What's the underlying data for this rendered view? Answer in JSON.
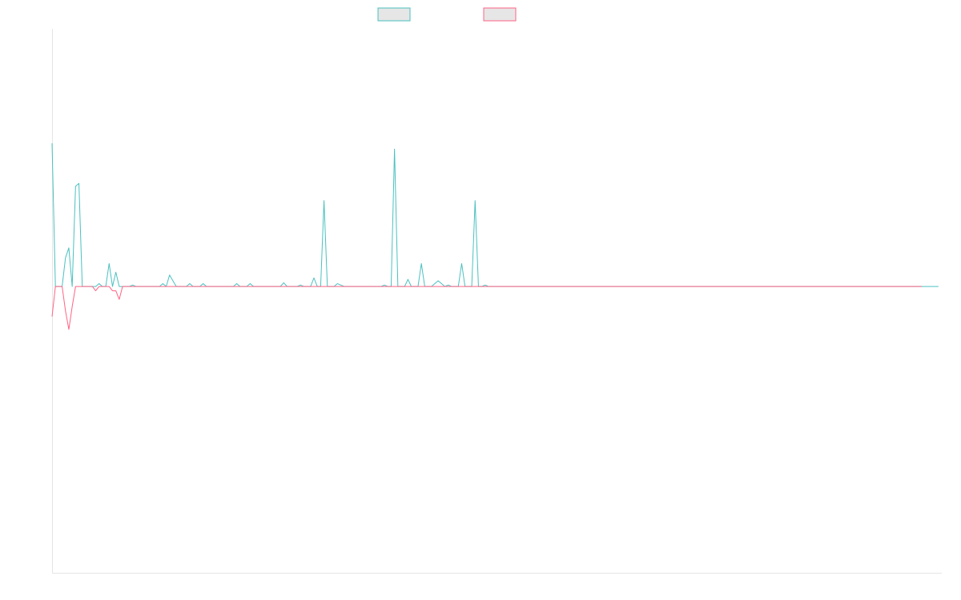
{
  "chart_data": {
    "type": "line",
    "title": "",
    "xlabel": "",
    "ylabel": "",
    "legend": {
      "placement": "top-center"
    },
    "grid": false,
    "x_count": 266,
    "ylim": [
      -1.0,
      0.9
    ],
    "series": [
      {
        "name": "",
        "color": "#4bc0c0",
        "fill": "#e6e6e6",
        "values": [
          0.5,
          0,
          0,
          0,
          0.1,
          0.135,
          0,
          0.35,
          0.36,
          0,
          0,
          0,
          0,
          0,
          0.01,
          0,
          0,
          0.08,
          0,
          0.05,
          0,
          0,
          0,
          0,
          0.005,
          0,
          0,
          0,
          0,
          0,
          0,
          0,
          0,
          0.01,
          0,
          0.04,
          0.02,
          0,
          0,
          0,
          0,
          0.01,
          0,
          0,
          0,
          0.01,
          0,
          0,
          0,
          0,
          0,
          0,
          0,
          0,
          0,
          0.01,
          0,
          0,
          0,
          0.01,
          0,
          0,
          0,
          0,
          0,
          0,
          0,
          0,
          0,
          0.013,
          0,
          0,
          0,
          0,
          0.005,
          0,
          0,
          0,
          0.03,
          0,
          0,
          0.3,
          0,
          0,
          0,
          0.01,
          0.005,
          0,
          0,
          0,
          0,
          0,
          0,
          0,
          0,
          0,
          0,
          0,
          0,
          0.005,
          0,
          0,
          0.48,
          0,
          0,
          0,
          0.025,
          0,
          0,
          0,
          0.08,
          0,
          0,
          0,
          0.01,
          0.02,
          0.01,
          0,
          0.005,
          0,
          0,
          0,
          0.08,
          0,
          0,
          0,
          0.3,
          0,
          0,
          0.005,
          0,
          0,
          0,
          0,
          0,
          0,
          0,
          0,
          0,
          0,
          0,
          0,
          0,
          0,
          0,
          0,
          0,
          0,
          0,
          0,
          0,
          0,
          0,
          0,
          0,
          0,
          0,
          0,
          0,
          0,
          0,
          0,
          0,
          0,
          0,
          0,
          0,
          0,
          0,
          0,
          0,
          0,
          0,
          0,
          0,
          0,
          0,
          0,
          0,
          0,
          0,
          0,
          0,
          0,
          0,
          0,
          0,
          0,
          0,
          0,
          0,
          0,
          0,
          0,
          0,
          0,
          0,
          0,
          0,
          0,
          0,
          0,
          0,
          0,
          0,
          0,
          0,
          0,
          0,
          0,
          0,
          0,
          0,
          0,
          0,
          0,
          0,
          0,
          0,
          0,
          0,
          0,
          0,
          0,
          0,
          0,
          0,
          0,
          0,
          0,
          0,
          0,
          0,
          0,
          0,
          0,
          0,
          0,
          0,
          0,
          0,
          0,
          0,
          0,
          0,
          0,
          0,
          0,
          0,
          0,
          0,
          0,
          0,
          0,
          0,
          0,
          0,
          0,
          0,
          0,
          0,
          0,
          0,
          0,
          0
        ]
      },
      {
        "name": "",
        "color": "#ff6384",
        "fill": "#e6e6e6",
        "values": [
          -0.105,
          0,
          0,
          0,
          -0.085,
          -0.15,
          -0.07,
          0,
          0,
          0,
          0,
          0,
          0,
          -0.015,
          0,
          0,
          0,
          0,
          -0.015,
          -0.015,
          -0.045,
          0,
          0,
          0,
          0,
          0,
          0,
          0,
          0,
          0,
          0,
          0,
          0,
          0,
          0,
          0,
          0,
          0,
          0,
          0,
          0,
          0,
          0,
          0,
          0,
          0,
          0,
          0,
          0,
          0,
          0,
          0,
          0,
          0,
          0,
          0,
          0,
          0,
          0,
          0,
          0,
          0,
          0,
          0,
          0,
          0,
          0,
          0,
          0,
          0,
          0,
          0,
          0,
          0,
          0,
          0,
          0,
          0,
          0,
          0,
          0,
          0,
          0,
          0,
          0,
          0,
          0,
          0,
          0,
          0,
          0,
          0,
          0,
          0,
          0,
          0,
          0,
          0,
          0,
          0,
          0,
          0,
          0,
          0,
          0,
          0,
          0,
          0,
          0,
          0,
          0,
          0,
          0,
          0,
          0,
          0,
          0,
          0,
          0,
          0,
          0,
          0,
          0,
          0,
          0,
          0,
          0,
          0,
          0,
          0,
          0,
          0,
          0,
          0,
          0,
          0,
          0,
          0,
          0,
          0,
          0,
          0,
          0,
          0,
          0,
          0,
          0,
          0,
          0,
          0,
          0,
          0,
          0,
          0,
          0,
          0,
          0,
          0,
          0,
          0,
          0,
          0,
          0,
          0,
          0,
          0,
          0,
          0,
          0,
          0,
          0,
          0,
          0,
          0,
          0,
          0,
          0,
          0,
          0,
          0,
          0,
          0,
          0,
          0,
          0,
          0,
          0,
          0,
          0,
          0,
          0,
          0,
          0,
          0,
          0,
          0,
          0,
          0,
          0,
          0,
          0,
          0,
          0,
          0,
          0,
          0,
          0,
          0,
          0,
          0,
          0,
          0,
          0,
          0,
          0,
          0,
          0,
          0,
          0,
          0,
          0,
          0,
          0,
          0,
          0,
          0,
          0,
          0,
          0,
          0,
          0,
          0,
          0,
          0,
          0,
          0,
          0,
          0,
          0,
          0,
          0,
          0,
          0,
          0,
          0,
          0,
          0,
          0,
          0,
          0,
          0,
          0,
          0,
          0,
          0,
          0,
          0,
          0,
          0,
          0
        ]
      }
    ]
  }
}
